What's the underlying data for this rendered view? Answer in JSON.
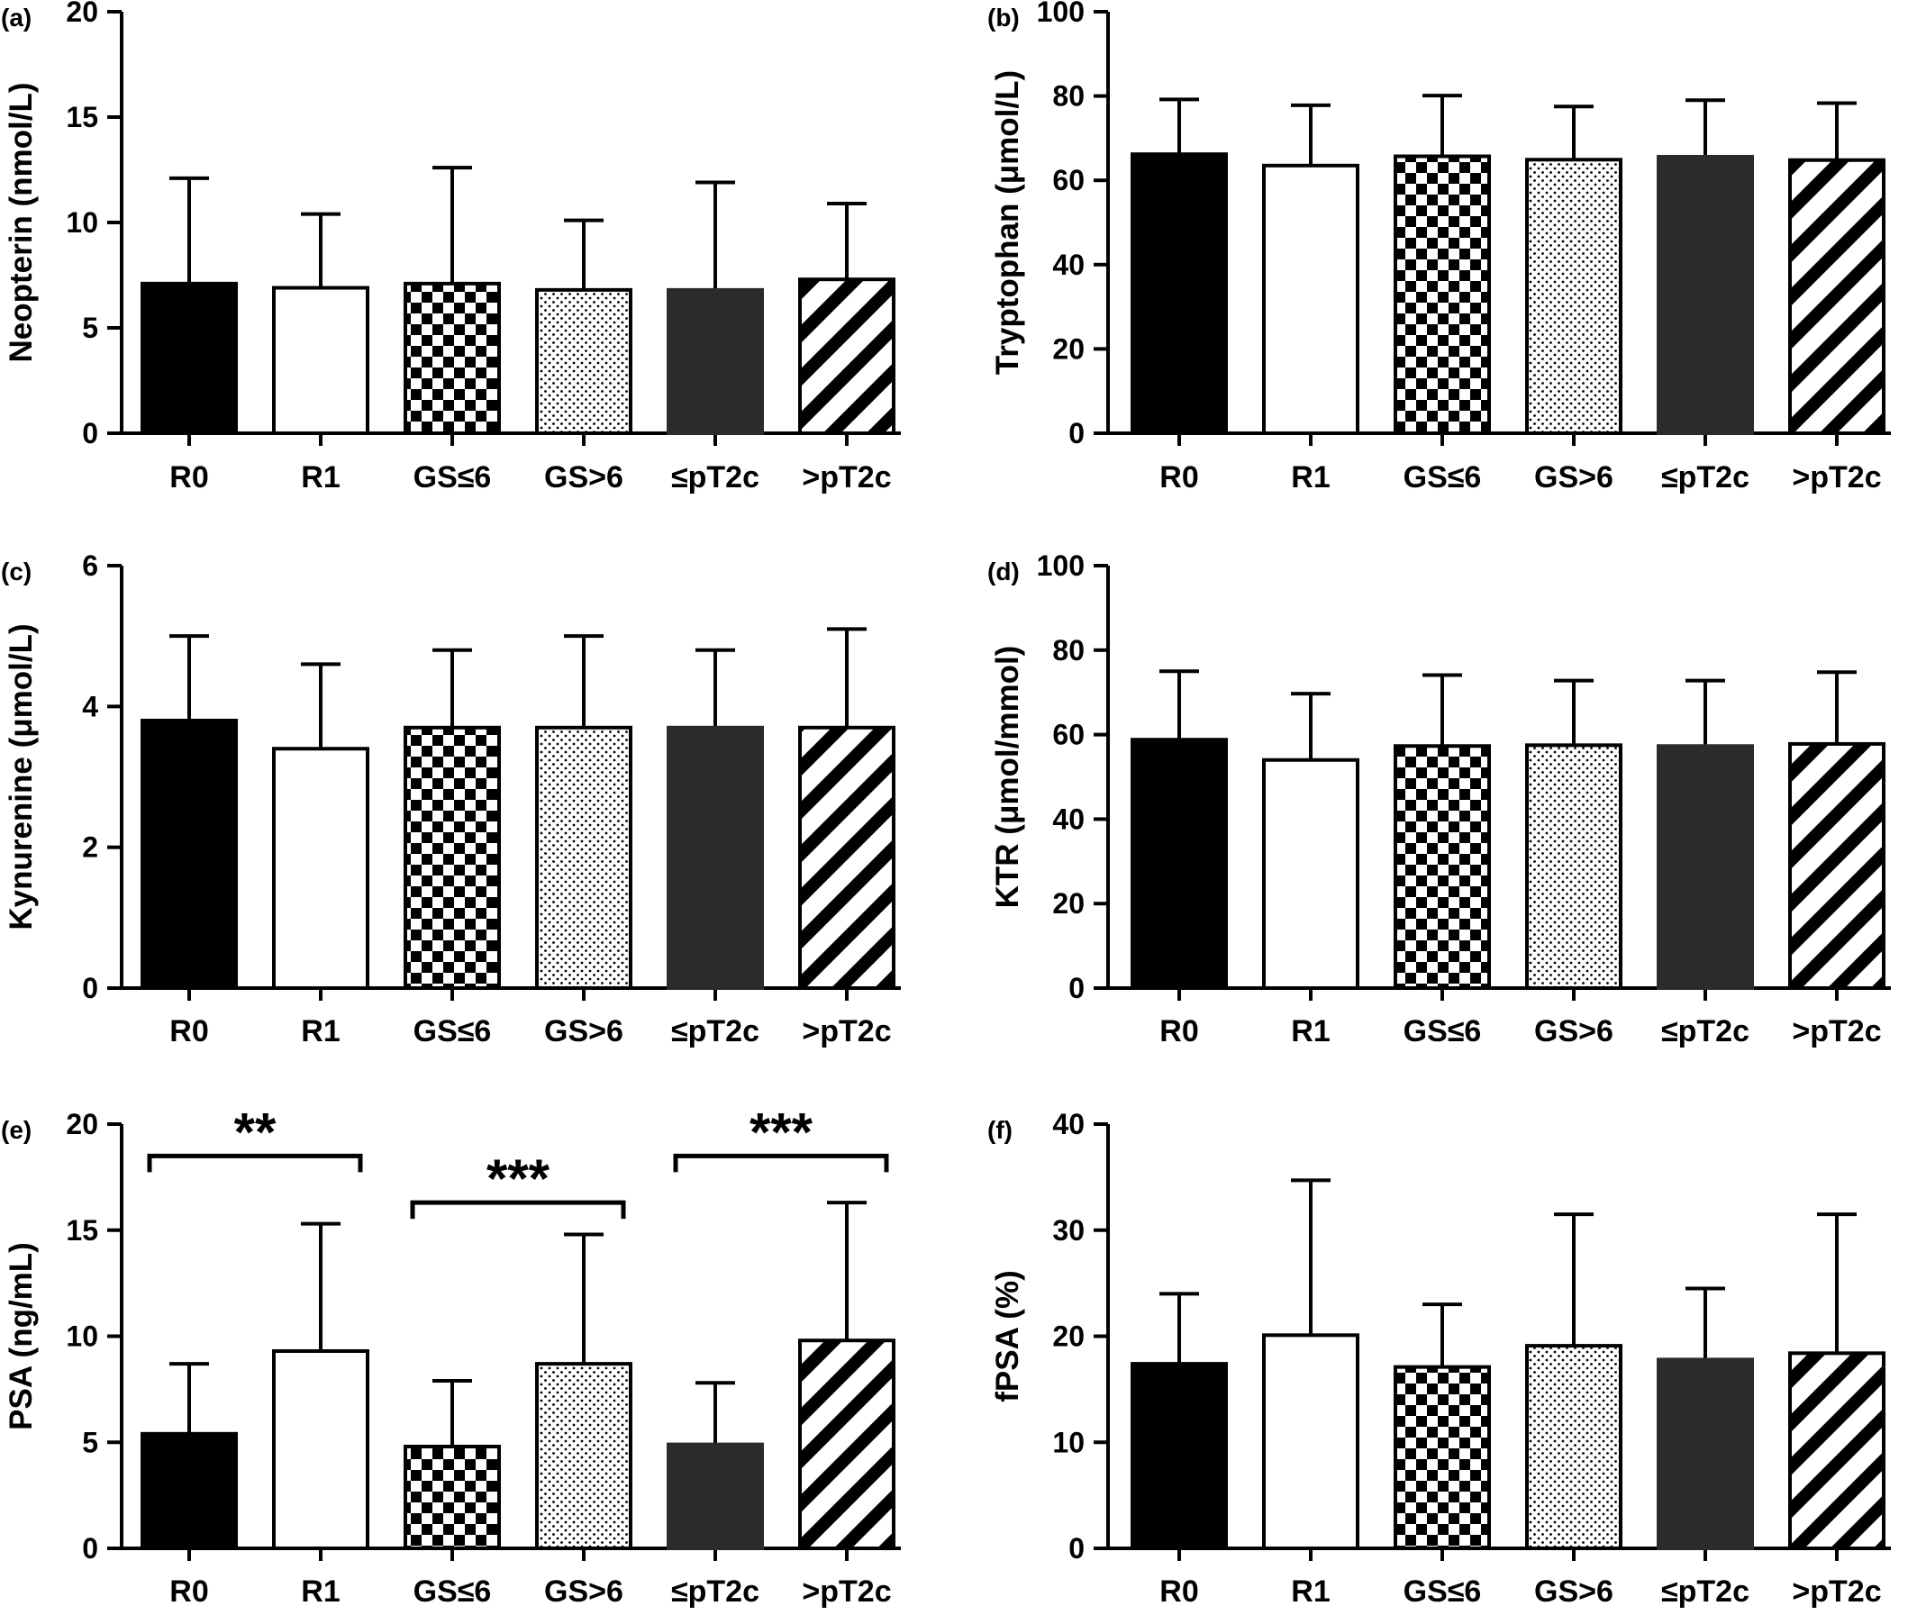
{
  "chart_data": [
    {
      "panel": "(a)",
      "type": "bar",
      "ylabel": "Neopterin (nmol/L)",
      "ylim": [
        0,
        20
      ],
      "yticks": [
        0,
        5,
        10,
        15,
        20
      ],
      "categories": [
        "R0",
        "R1",
        "GS≤6",
        "GS>6",
        "≤pT2c",
        ">pT2c"
      ],
      "values": [
        7.1,
        6.9,
        7.1,
        6.8,
        6.8,
        7.3
      ],
      "errors_upper": [
        12.1,
        10.4,
        12.6,
        10.1,
        11.9,
        10.9
      ],
      "significance": []
    },
    {
      "panel": "(b)",
      "type": "bar",
      "ylabel": "Tryptophan (μmol/L)",
      "ylim": [
        0,
        100
      ],
      "yticks": [
        0,
        20,
        40,
        60,
        80,
        100
      ],
      "categories": [
        "R0",
        "R1",
        "GS≤6",
        "GS>6",
        "≤pT2c",
        ">pT2c"
      ],
      "values": [
        66.2,
        63.5,
        65.7,
        64.9,
        65.6,
        64.8
      ],
      "errors_upper": [
        79.2,
        77.8,
        80.1,
        77.5,
        79.0,
        78.3
      ],
      "significance": []
    },
    {
      "panel": "(c)",
      "type": "bar",
      "ylabel": "Kynurenine (μmol/L)",
      "ylim": [
        0,
        6
      ],
      "yticks": [
        0,
        2,
        4,
        6
      ],
      "categories": [
        "R0",
        "R1",
        "GS≤6",
        "GS>6",
        "≤pT2c",
        ">pT2c"
      ],
      "values": [
        3.8,
        3.4,
        3.7,
        3.7,
        3.7,
        3.7
      ],
      "errors_upper": [
        5.0,
        4.6,
        4.8,
        5.0,
        4.8,
        5.1
      ],
      "significance": []
    },
    {
      "panel": "(d)",
      "type": "bar",
      "ylabel": "KTR  (μmol/mmol)",
      "ylim": [
        0,
        100
      ],
      "yticks": [
        0,
        20,
        40,
        60,
        80,
        100
      ],
      "categories": [
        "R0",
        "R1",
        "GS≤6",
        "GS>6",
        "≤pT2c",
        ">pT2c"
      ],
      "values": [
        58.8,
        54.0,
        57.3,
        57.5,
        57.3,
        57.8
      ],
      "errors_upper": [
        75.0,
        69.7,
        74.1,
        72.8,
        72.8,
        74.8
      ],
      "significance": []
    },
    {
      "panel": "(e)",
      "type": "bar",
      "ylabel": "PSA (ng/mL)",
      "ylim": [
        0,
        20
      ],
      "yticks": [
        0,
        5,
        10,
        15,
        20
      ],
      "categories": [
        "R0",
        "R1",
        "GS≤6",
        "GS>6",
        "≤pT2c",
        ">pT2c"
      ],
      "values": [
        5.4,
        9.3,
        4.8,
        8.7,
        4.9,
        9.8
      ],
      "errors_upper": [
        8.7,
        15.3,
        7.9,
        14.8,
        7.8,
        16.3
      ],
      "significance": [
        {
          "from": 0,
          "to": 1,
          "label": "**",
          "y": 18.5
        },
        {
          "from": 2,
          "to": 3,
          "label": "***",
          "y": 16.3
        },
        {
          "from": 4,
          "to": 5,
          "label": "***",
          "y": 18.5
        }
      ]
    },
    {
      "panel": "(f)",
      "type": "bar",
      "ylabel": "fPSA (%)",
      "ylim": [
        0,
        40
      ],
      "yticks": [
        0,
        10,
        20,
        30,
        40
      ],
      "categories": [
        "R0",
        "R1",
        "GS≤6",
        "GS>6",
        "≤pT2c",
        ">pT2c"
      ],
      "values": [
        17.4,
        20.1,
        17.1,
        19.1,
        17.8,
        18.4
      ],
      "errors_upper": [
        24.0,
        34.7,
        23.0,
        31.5,
        24.5,
        31.5
      ],
      "significance": []
    }
  ],
  "bar_fills": [
    "solid-black",
    "white",
    "checkerboard",
    "dots",
    "dark-gray",
    "diagonal-stripes"
  ],
  "colors": {
    "black": "#000000",
    "dark_gray": "#2b2b2b",
    "white": "#ffffff"
  }
}
